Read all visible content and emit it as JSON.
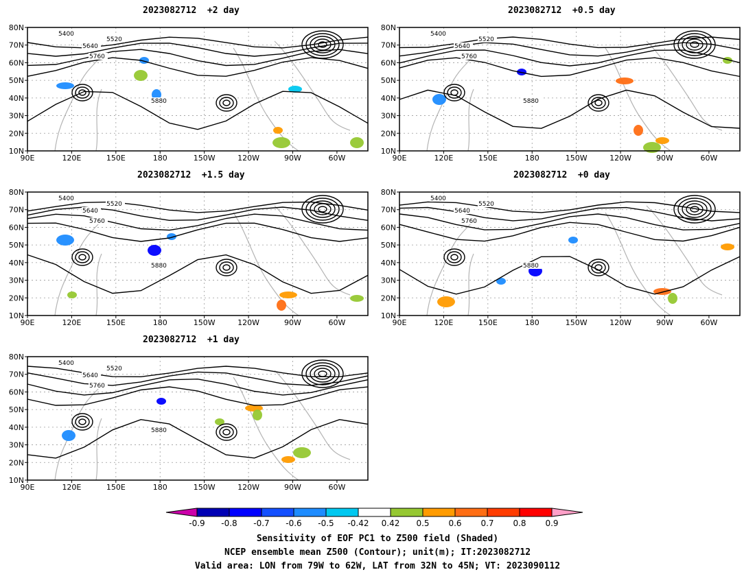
{
  "panels": [
    {
      "title": "2023082712  +2 day"
    },
    {
      "title": "2023082712  +0.5 day"
    },
    {
      "title": "2023082712  +1.5 day"
    },
    {
      "title": "2023082712  +0 day"
    },
    {
      "title": "2023082712  +1 day"
    }
  ],
  "axes": {
    "lon_labels": [
      "90E",
      "120E",
      "150E",
      "180",
      "150W",
      "120W",
      "90W",
      "60W"
    ],
    "lat_labels": [
      "80N",
      "70N",
      "60N",
      "50N",
      "40N",
      "30N",
      "20N",
      "10N"
    ]
  },
  "contour_labels": [
    "5400",
    "5520",
    "5640",
    "5760",
    "5880"
  ],
  "colorbar": {
    "labels": [
      "-0.9",
      "-0.8",
      "-0.7",
      "-0.6",
      "-0.5",
      "-0.42",
      "0.42",
      "0.5",
      "0.6",
      "0.7",
      "0.8",
      "0.9"
    ],
    "colors": [
      "#cc00aa",
      "#0000b4",
      "#0000ff",
      "#1450ff",
      "#1e8cff",
      "#00c8f0",
      "#ffffff",
      "#96c832",
      "#ff9b00",
      "#ff6e14",
      "#ff3c00",
      "#ff0000",
      "#ffa0c8"
    ]
  },
  "footer": {
    "line1": "Sensitivity of EOF PC1 to Z500 field (Shaded)",
    "line2": "NCEP ensemble mean Z500 (Contour); unit(m); IT:2023082712",
    "line3": "Valid area: LON from 79W to 62W, LAT from 32N to 45N; VT: 2023090112"
  }
}
